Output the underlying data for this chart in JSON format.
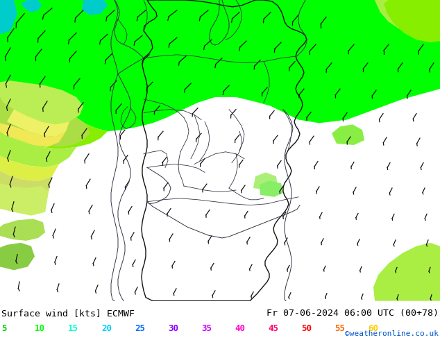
{
  "title_left": "Surface wind [kts] ECMWF",
  "title_right": "Fr 07-06-2024 06:00 UTC (00+78)",
  "credit": "©weatheronline.co.uk",
  "legend_values": [
    5,
    10,
    15,
    20,
    25,
    30,
    35,
    40,
    45,
    50,
    55,
    60
  ],
  "legend_colors": [
    "#00cc00",
    "#00ff00",
    "#00ffcc",
    "#00ccff",
    "#0066ff",
    "#8800ff",
    "#cc00ff",
    "#ff00cc",
    "#ff0066",
    "#ff0000",
    "#ff6600",
    "#ffcc00"
  ],
  "bg_color": "#ffffff",
  "map_bg": "#f5d800",
  "border_color": "#333344",
  "footer_bg": "#ffffff",
  "bright_green": "#00ff00",
  "light_green": "#88ee00",
  "mid_green": "#aaee44",
  "pale_green": "#ccee88",
  "yellow_green": "#ddee44",
  "teal": "#00cccc",
  "dark_teal": "#009999"
}
